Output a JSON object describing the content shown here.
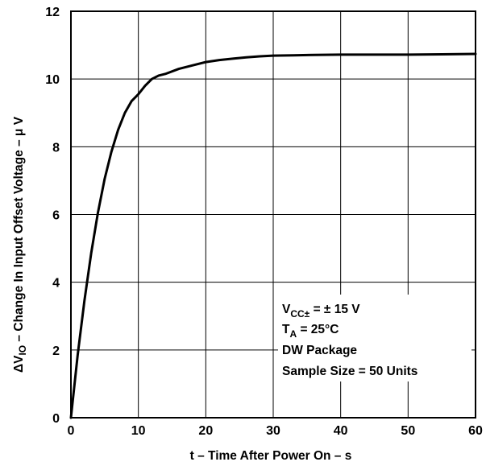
{
  "chart_data": {
    "type": "line",
    "title": "",
    "xlabel": "t – Time After Power On – s",
    "ylabel": {
      "prefix": "ΔV",
      "subscript": "IO",
      "rest": " – Change In Input Offset Voltage – μ V"
    },
    "xlim": [
      0,
      60
    ],
    "ylim": [
      0,
      12
    ],
    "xticks": [
      "0",
      "10",
      "20",
      "30",
      "40",
      "50",
      "60"
    ],
    "yticks": [
      "0",
      "2",
      "4",
      "6",
      "8",
      "10",
      "12"
    ],
    "grid": true,
    "series": [
      {
        "x": [
          0,
          1,
          2,
          3,
          4,
          5,
          6,
          7,
          8,
          9,
          10,
          11,
          12,
          13,
          14,
          16,
          18,
          20,
          22,
          24,
          26,
          28,
          30,
          33,
          36,
          40,
          45,
          50,
          55,
          60
        ],
        "y": [
          0,
          1.85,
          3.45,
          4.85,
          6.05,
          7.05,
          7.85,
          8.5,
          9.0,
          9.35,
          9.55,
          9.8,
          10.0,
          10.1,
          10.15,
          10.3,
          10.4,
          10.5,
          10.56,
          10.6,
          10.64,
          10.67,
          10.69,
          10.7,
          10.71,
          10.72,
          10.72,
          10.72,
          10.73,
          10.74
        ]
      }
    ],
    "annotation": {
      "line1": {
        "v": "V",
        "sub": "CC±",
        "rest": " = ± 15 V"
      },
      "line2": {
        "t": "T",
        "sub": "A",
        "rest": " = 25°C"
      },
      "line3": "DW Package",
      "line4": "Sample Size = 50 Units"
    }
  },
  "colors": {
    "line": "#000000",
    "grid": "#000000",
    "background": "#ffffff"
  }
}
